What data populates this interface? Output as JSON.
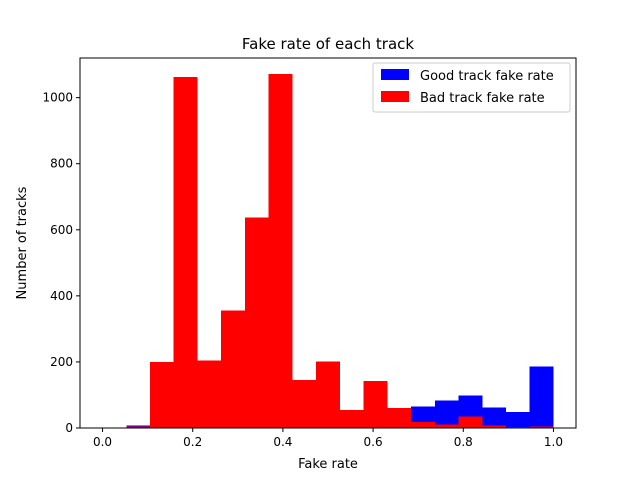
{
  "chart_data": {
    "type": "bar",
    "title": "Fake rate of each track",
    "xlabel": "Fake rate",
    "ylabel": "Number of tracks",
    "xlim": [
      -0.05,
      1.05
    ],
    "ylim": [
      0,
      1120
    ],
    "xticks": [
      0.0,
      0.2,
      0.4,
      0.6,
      0.8,
      1.0
    ],
    "xtick_labels": [
      "0.0",
      "0.2",
      "0.4",
      "0.6",
      "0.8",
      "1.0"
    ],
    "yticks": [
      0,
      200,
      400,
      600,
      800,
      1000
    ],
    "ytick_labels": [
      "0",
      "200",
      "400",
      "600",
      "800",
      "1000"
    ],
    "grid": false,
    "legend_position": "top-right",
    "bin_edges": [
      0.0,
      0.0526,
      0.1053,
      0.1579,
      0.2105,
      0.2632,
      0.3158,
      0.3684,
      0.4211,
      0.4737,
      0.5263,
      0.5789,
      0.6316,
      0.6842,
      0.7368,
      0.7895,
      0.8421,
      0.8947,
      0.9474,
      1.0
    ],
    "series": [
      {
        "name": "Good track fake rate",
        "color": "#0000ff",
        "values": [
          0,
          8,
          0,
          0,
          0,
          0,
          0,
          0,
          0,
          0,
          0,
          0,
          0,
          65,
          83,
          98,
          62,
          48,
          186
        ]
      },
      {
        "name": "Bad track fake rate",
        "color": "#ff0000",
        "values": [
          0,
          4,
          200,
          1062,
          205,
          355,
          637,
          1072,
          145,
          202,
          54,
          142,
          60,
          18,
          10,
          35,
          8,
          3,
          5
        ]
      }
    ]
  }
}
